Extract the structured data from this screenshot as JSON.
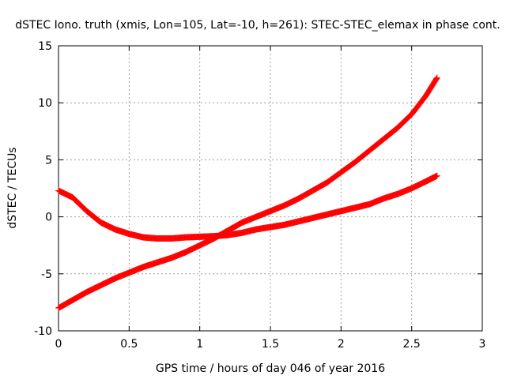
{
  "chart_data": {
    "type": "scatter",
    "title": "dSTEC Iono. truth (xmis, Lon=105, Lat=-10, h=261): STEC-STEC_elemax in phase cont.",
    "xlabel": "GPS time / hours of day 046 of year 2016",
    "ylabel": "dSTEC  / TECUs",
    "xlim": [
      0,
      3
    ],
    "ylim": [
      -10,
      15
    ],
    "xticks": [
      0,
      0.5,
      1,
      1.5,
      2,
      2.5,
      3
    ],
    "xtick_labels": [
      "0",
      "0.5",
      "1",
      "1.5",
      "2",
      "2.5",
      "3"
    ],
    "yticks": [
      -10,
      -5,
      0,
      5,
      10,
      15
    ],
    "ytick_labels": [
      "-10",
      "-5",
      "0",
      "5",
      "10",
      "15"
    ],
    "grid": true,
    "marker": "+",
    "series_color": "#ff0000",
    "series": [
      {
        "x": [
          0.0,
          0.1,
          0.2,
          0.3,
          0.4,
          0.5,
          0.6,
          0.7,
          0.8,
          0.9,
          1.0,
          1.1,
          1.2,
          1.3,
          1.4,
          1.5,
          1.6,
          1.7,
          1.8,
          1.9,
          2.0,
          2.1,
          2.2,
          2.3,
          2.4,
          2.5,
          2.6,
          2.68
        ],
        "y": [
          2.3,
          1.7,
          0.5,
          -0.5,
          -1.1,
          -1.5,
          -1.8,
          -1.9,
          -1.9,
          -1.8,
          -1.75,
          -1.7,
          -1.6,
          -1.4,
          -1.1,
          -0.9,
          -0.7,
          -0.4,
          -0.1,
          0.2,
          0.5,
          0.8,
          1.1,
          1.6,
          2.0,
          2.5,
          3.1,
          3.6
        ]
      },
      {
        "x": [
          0.0,
          0.1,
          0.2,
          0.3,
          0.4,
          0.5,
          0.6,
          0.7,
          0.8,
          0.9,
          1.0,
          1.1,
          1.2,
          1.3,
          1.4,
          1.5,
          1.6,
          1.7,
          1.8,
          1.9,
          2.0,
          2.1,
          2.2,
          2.3,
          2.4,
          2.5,
          2.6,
          2.68
        ],
        "y": [
          -8.0,
          -7.3,
          -6.6,
          -6.0,
          -5.4,
          -4.9,
          -4.4,
          -4.0,
          -3.6,
          -3.1,
          -2.5,
          -1.9,
          -1.2,
          -0.5,
          0.0,
          0.5,
          1.0,
          1.6,
          2.3,
          3.0,
          3.9,
          4.8,
          5.8,
          6.8,
          7.8,
          9.0,
          10.6,
          12.2
        ]
      }
    ]
  }
}
